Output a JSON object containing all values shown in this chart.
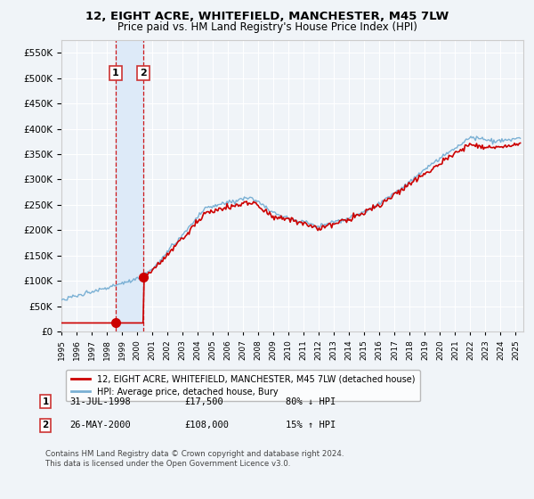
{
  "title": "12, EIGHT ACRE, WHITEFIELD, MANCHESTER, M45 7LW",
  "subtitle": "Price paid vs. HM Land Registry's House Price Index (HPI)",
  "legend_line1": "12, EIGHT ACRE, WHITEFIELD, MANCHESTER, M45 7LW (detached house)",
  "legend_line2": "HPI: Average price, detached house, Bury",
  "purchase1_date": "31-JUL-1998",
  "purchase1_price": 17500,
  "purchase1_hpi": "80% ↓ HPI",
  "purchase2_date": "26-MAY-2000",
  "purchase2_price": 108000,
  "purchase2_hpi": "15% ↑ HPI",
  "purchase1_year": 1998.58,
  "purchase2_year": 2000.4,
  "footnote": "Contains HM Land Registry data © Crown copyright and database right 2024.\nThis data is licensed under the Open Government Licence v3.0.",
  "ylim_min": 0,
  "ylim_max": 575000,
  "bg_color": "#f0f4f8",
  "grid_color": "#ffffff",
  "line_color_property": "#cc0000",
  "line_color_hpi": "#7ab0d4",
  "marker_color": "#cc0000",
  "vline_color": "#cc0000",
  "vband_color": "#ddeaf8",
  "label_box_color": "#cc3333",
  "xmin": 1995,
  "xmax": 2025.5,
  "yticks": [
    0,
    50000,
    100000,
    150000,
    200000,
    250000,
    300000,
    350000,
    400000,
    450000,
    500000,
    550000
  ]
}
